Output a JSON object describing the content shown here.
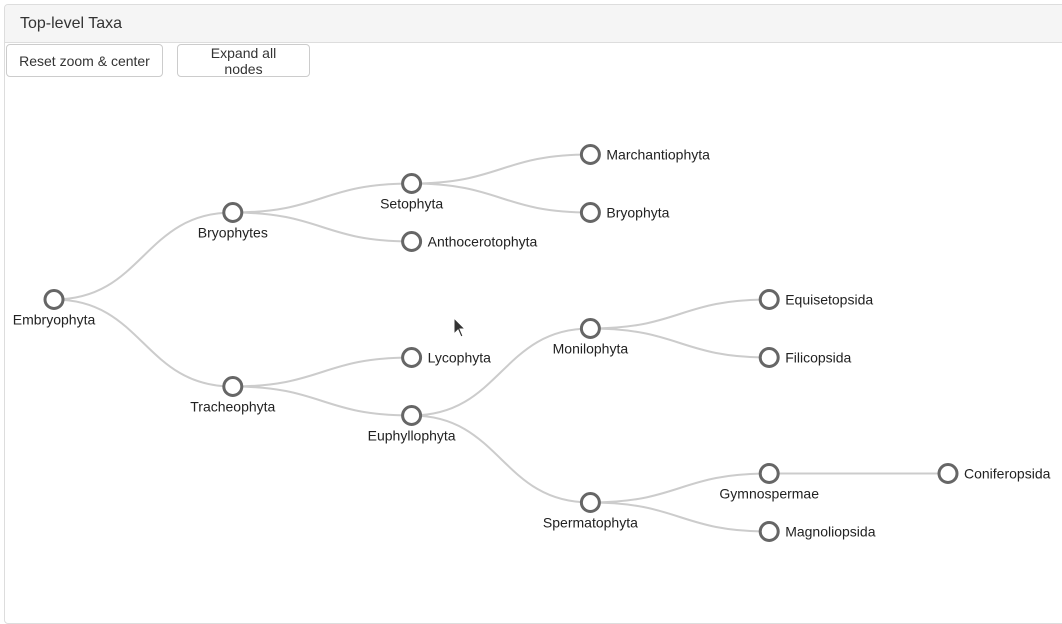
{
  "panel": {
    "title": "Top-level Taxa"
  },
  "toolbar": {
    "reset_label": "Reset zoom & center",
    "expand_label": "Expand all nodes"
  },
  "tree": {
    "root": {
      "name": "Embryophyta",
      "children": [
        {
          "name": "Bryophytes",
          "children": [
            {
              "name": "Setophyta",
              "children": [
                {
                  "name": "Marchantiophyta"
                },
                {
                  "name": "Bryophyta"
                }
              ]
            },
            {
              "name": "Anthocerotophyta"
            }
          ]
        },
        {
          "name": "Tracheophyta",
          "children": [
            {
              "name": "Lycophyta"
            },
            {
              "name": "Euphyllophyta",
              "children": [
                {
                  "name": "Monilophyta",
                  "children": [
                    {
                      "name": "Equisetopsida"
                    },
                    {
                      "name": "Filicopsida"
                    }
                  ]
                },
                {
                  "name": "Spermatophyta",
                  "children": [
                    {
                      "name": "Gymnospermae",
                      "children": [
                        {
                          "name": "Coniferopsida"
                        }
                      ]
                    },
                    {
                      "name": "Magnoliopsida"
                    }
                  ]
                }
              ]
            }
          ]
        }
      ]
    }
  },
  "colors": {
    "link": "#cccccc",
    "node_stroke": "#666666",
    "node_fill": "#ffffff"
  },
  "icons": {
    "cursor": "mouse-pointer-icon"
  }
}
